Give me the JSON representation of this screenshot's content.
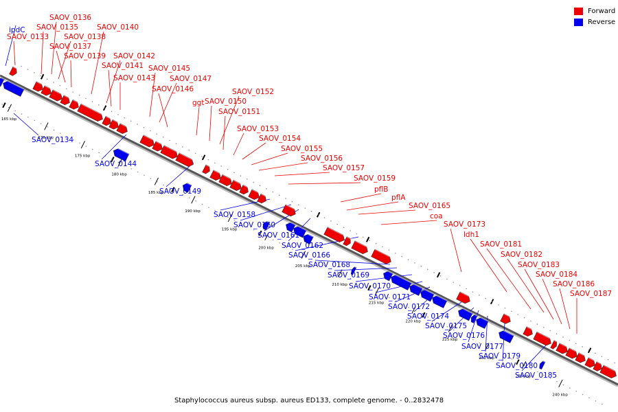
{
  "caption": "Staphylococcus aureus subsp. aureus ED133, complete genome. - 0..2832478",
  "legend": [
    {
      "label": "Forward",
      "color": "#ee0000"
    },
    {
      "label": "Reverse",
      "color": "#0000ee"
    }
  ],
  "colors": {
    "forward": "#ee0000",
    "reverse": "#0000ee",
    "backbone": "#555555"
  },
  "ticks": [
    "165 kbp",
    "170 kbp",
    "175 kbp",
    "180 kbp",
    "185 kbp",
    "190 kbp",
    "195 kbp",
    "200 kbp",
    "205 kbp",
    "210 kbp",
    "215 kbp",
    "220 kbp",
    "225 kbp",
    "230 kbp",
    "235 kbp",
    "240 kbp"
  ],
  "forward_labels": [
    "SAOV_0133",
    "SAOV_0135",
    "SAOV_0136",
    "SAOV_0138",
    "SAOV_0137",
    "SAOV_0139",
    "SAOV_0140",
    "SAOV_0142",
    "SAOV_0141",
    "SAOV_0143",
    "SAOV_0145",
    "SAOV_0147",
    "SAOV_0146",
    "ggt",
    "SAOV_0150",
    "SAOV_0152",
    "SAOV_0151",
    "SAOV_0153",
    "SAOV_0154",
    "SAOV_0155",
    "SAOV_0156",
    "SAOV_0157",
    "SAOV_0159",
    "pflB",
    "pflA",
    "SAOV_0165",
    "coa",
    "SAOV_0173",
    "ldh1",
    "SAOV_0181",
    "SAOV_0182",
    "SAOV_0183",
    "SAOV_0184",
    "SAOV_0186",
    "SAOV_0187"
  ],
  "reverse_labels": [
    "ipdC",
    "SAOV_0134",
    "SAOV_0144",
    "SAOV_0149",
    "SAOV_0158",
    "SAOV_0160",
    "SAOV_0161",
    "SAOV_0162",
    "SAOV_0166",
    "SAOV_0168",
    "SAOV_0169",
    "SAOV_0170",
    "SAOV_0171",
    "SAOV_0172",
    "SAOV_0174",
    "SAOV_0175",
    "SAOV_0176",
    "SAOV_0177",
    "SAOV_0179",
    "SAOV_0180",
    "SAOV_0185"
  ]
}
